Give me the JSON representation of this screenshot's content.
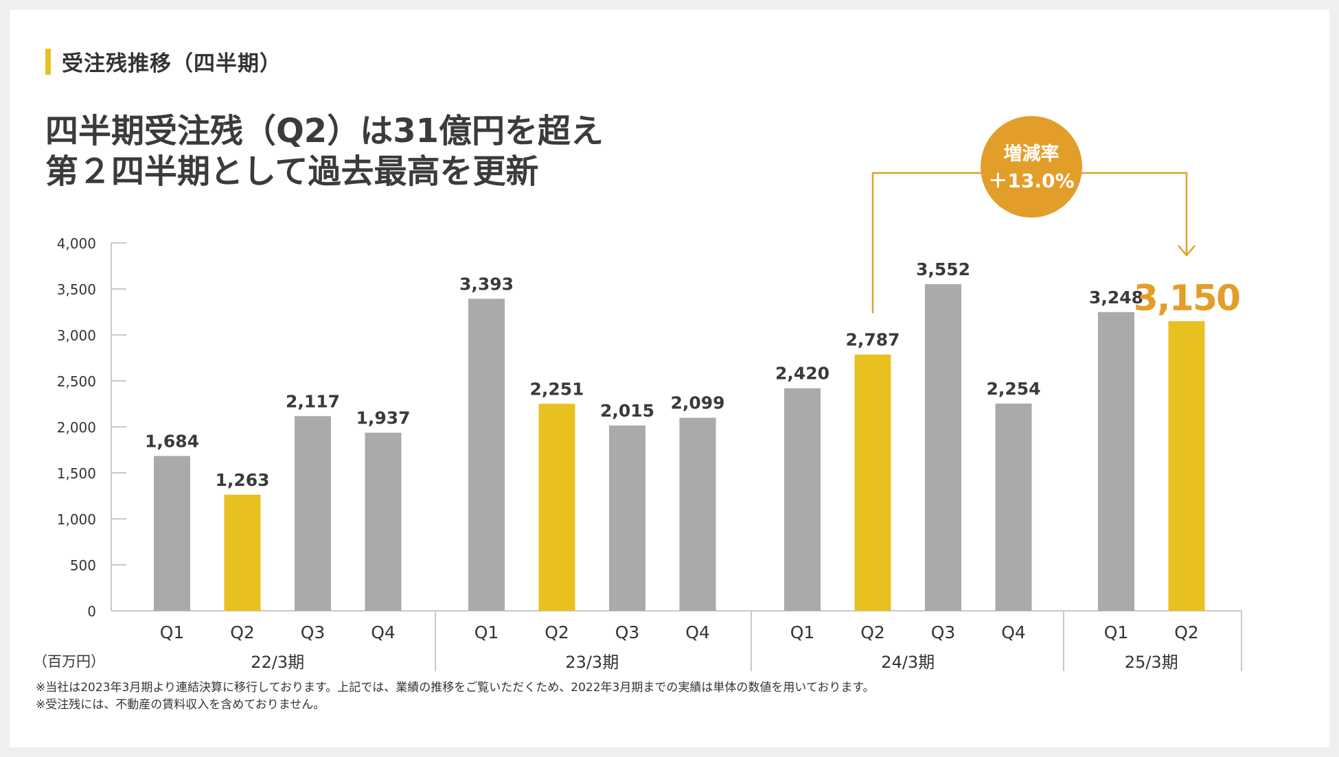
{
  "section_title": "受注残推移（四半期）",
  "headline": {
    "line1": "四半期受注残（Q2）は31億円を超え",
    "line2": "第２四半期として過去最高を更新"
  },
  "unit": "（百万円）",
  "footnotes": [
    "※当社は2023年3月期より連結決算に移行しております。上記では、業績の推移をご覧いただくため、2022年3月期までの実績は単体の数値を用いております。",
    "※受注残には、不動産の賃料収入を含めておりません。"
  ],
  "colors": {
    "gray_bar": "#a9aaa9",
    "yellow_bar": "#e8c020",
    "accent_orange": "#e39e2a",
    "axis": "#c8c8c8",
    "text": "#333333"
  },
  "chart_data": {
    "type": "bar",
    "ylim": [
      0,
      4000
    ],
    "yticks": [
      0,
      500,
      1000,
      1500,
      2000,
      2500,
      3000,
      3500,
      4000
    ],
    "ytick_labels": [
      "0",
      "500",
      "1,000",
      "1,500",
      "2,000",
      "2,500",
      "3,000",
      "3,500",
      "4,000"
    ],
    "groups": [
      {
        "label": "22/3期",
        "bars": [
          {
            "q": "Q1",
            "value": 1684,
            "label": "1,684",
            "highlight": false
          },
          {
            "q": "Q2",
            "value": 1263,
            "label": "1,263",
            "highlight": true
          },
          {
            "q": "Q3",
            "value": 2117,
            "label": "2,117",
            "highlight": false
          },
          {
            "q": "Q4",
            "value": 1937,
            "label": "1,937",
            "highlight": false
          }
        ]
      },
      {
        "label": "23/3期",
        "bars": [
          {
            "q": "Q1",
            "value": 3393,
            "label": "3,393",
            "highlight": false
          },
          {
            "q": "Q2",
            "value": 2251,
            "label": "2,251",
            "highlight": true
          },
          {
            "q": "Q3",
            "value": 2015,
            "label": "2,015",
            "highlight": false
          },
          {
            "q": "Q4",
            "value": 2099,
            "label": "2,099",
            "highlight": false
          }
        ]
      },
      {
        "label": "24/3期",
        "bars": [
          {
            "q": "Q1",
            "value": 2420,
            "label": "2,420",
            "highlight": false
          },
          {
            "q": "Q2",
            "value": 2787,
            "label": "2,787",
            "highlight": true
          },
          {
            "q": "Q3",
            "value": 3552,
            "label": "3,552",
            "highlight": false
          },
          {
            "q": "Q4",
            "value": 2254,
            "label": "2,254",
            "highlight": false
          }
        ]
      },
      {
        "label": "25/3期",
        "bars": [
          {
            "q": "Q1",
            "value": 3248,
            "label": "3,248",
            "highlight": false
          },
          {
            "q": "Q2",
            "value": 3150,
            "label": "3,150",
            "highlight": true,
            "emphasis": true
          }
        ]
      }
    ],
    "annotation": {
      "title": "増減率",
      "value": "＋13.0%",
      "from": "24/3期 Q2",
      "to": "25/3期 Q2"
    }
  }
}
